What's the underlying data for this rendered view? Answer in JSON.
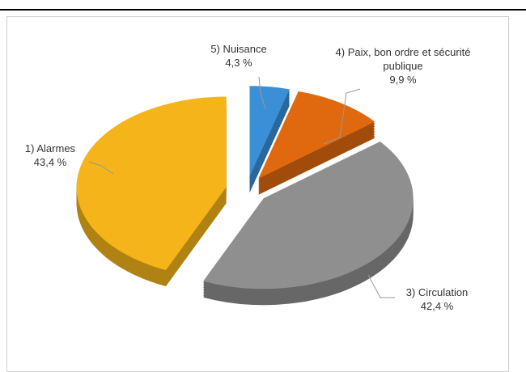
{
  "chart_data": {
    "type": "pie",
    "categories": [
      "1) Alarmes",
      "3) Circulation",
      "4) Paix, bon ordre et sécurité publique",
      "5) Nuisance"
    ],
    "values": [
      43.4,
      42.4,
      9.9,
      4.3
    ],
    "value_labels": [
      "43,4 %",
      "42,4 %",
      "9,9 %",
      "4,3 %"
    ],
    "colors": [
      "#f4b41a",
      "#8f8f8f",
      "#e0690f",
      "#3b8fd6"
    ]
  }
}
